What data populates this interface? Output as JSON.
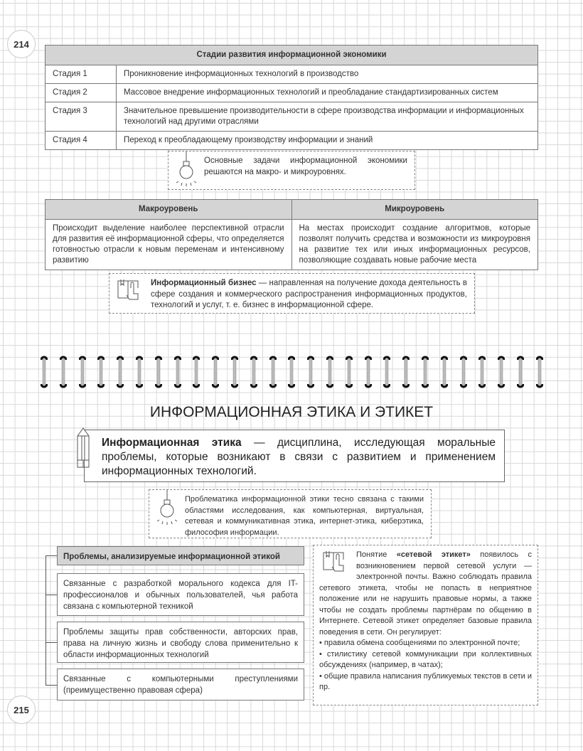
{
  "page_numbers": {
    "top": "214",
    "bottom": "215"
  },
  "stages_table": {
    "title": "Стадии развития информационной экономики",
    "rows": [
      {
        "stage": "Стадия 1",
        "text": "Проникновение информационных технологий в производство"
      },
      {
        "stage": "Стадия 2",
        "text": "Массовое внедрение информационных технологий и преобладание стандартизированных систем"
      },
      {
        "stage": "Стадия 3",
        "text": "Значительное превышение производительности в сфере производства информации и информационных технологий над другими отраслями"
      },
      {
        "stage": "Стадия 4",
        "text": "Переход к преобладающему производству информации и знаний"
      }
    ]
  },
  "note1": {
    "icon": "lightbulb-icon",
    "text": "Основные задачи информационной экономики решаются на макро- и микроуровнях."
  },
  "levels_table": {
    "headers": [
      "Макроуровень",
      "Микроуровень"
    ],
    "cells": [
      "Происходит выделение наиболее перспективной отрасли для развития её информационной сферы, что определяется готовностью отрасли к новым переменам и интенсивному развитию",
      "На местах происходит создание алгоритмов, которые позволят получить средства и возможности из микроуровня на развитие тех или иных информационных ресурсов, позволяющие создавать новые рабочие места"
    ]
  },
  "note2": {
    "icon": "book-hand-icon",
    "term": "Информационный бизнес",
    "text": " — направленная на получение дохода деятельность в сфере создания и коммерческого распространения информационных продуктов, технологий и услуг, т. е. бизнес в информационной сфере."
  },
  "section_title": "ИНФОРМАЦИОННАЯ ЭТИКА И ЭТИКЕТ",
  "definition": {
    "icon": "pencil-icon",
    "term": "Информационная этика",
    "text": " — дисциплина, исследующая моральные проблемы, которые возникают в связи с развитием и применением информационных технологий."
  },
  "note3": {
    "icon": "lightbulb-icon",
    "text": "Проблематика информационной этики тесно связана с такими областями исследования, как компьютерная, виртуальная, сетевая и коммуникативная этика, интернет-этика, киберэтика, философия информации."
  },
  "problems": {
    "title": "Проблемы, анализируемые информационной этикой",
    "items": [
      "Связанные с разработкой морального кодекса для IT-профессионалов и обычных пользователей, чья работа связана с компьютерной техникой",
      "Проблемы защиты прав собственности, авторских прав, права на личную жизнь и свободу слова применительно к области информационных технологий",
      "Связанные с компьютерными преступлениями (преимущественно правовая сфера)"
    ]
  },
  "netiquette": {
    "icon": "book-hand-icon",
    "intro": "Понятие ",
    "term": "«сетевой этикет»",
    "text": " появилось с возникновением первой сетевой услуги — электронной почты. Важно соблюдать правила сетевого этикета, чтобы не попасть в неприятное положение или не нарушить правовые нормы, а также чтобы не создать проблемы партнёрам по общению в Интернете. Сетевой этикет определяет базовые правила поведения в сети. Он регулирует:",
    "bullets": [
      "• правила обмена сообщениями по электронной почте;",
      "• стилистику сетевой коммуникации при коллективных обсуждениях (например, в чатах);",
      "• общие правила написания публикуемых текстов в сети и пр."
    ]
  }
}
